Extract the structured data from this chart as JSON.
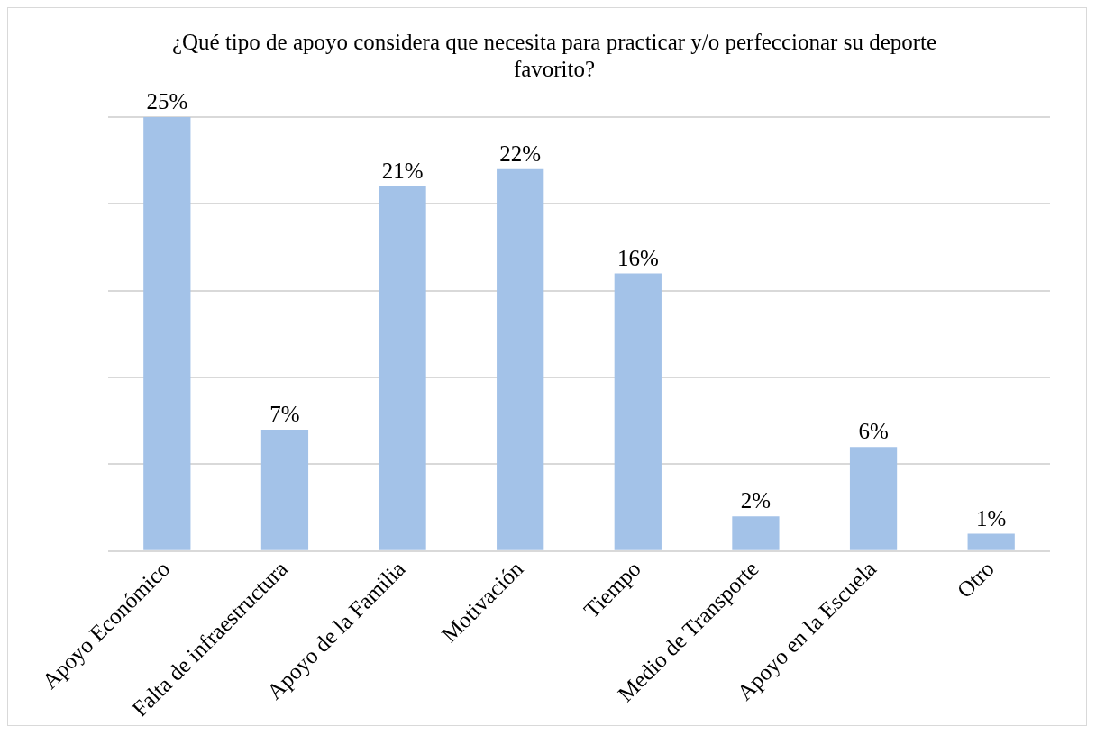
{
  "chart_data": {
    "type": "bar",
    "title": "¿Qué tipo de apoyo considera que necesita para practicar y/o perfeccionar su deporte favorito?",
    "categories": [
      "Apoyo Económico",
      "Falta de infraestructura",
      "Apoyo de la Familia",
      "Motivación",
      "Tiempo",
      "Medio de Transporte",
      "Apoyo en la Escuela",
      "Otro"
    ],
    "values": [
      25,
      7,
      21,
      22,
      16,
      2,
      6,
      1
    ],
    "value_labels": [
      "25%",
      "7%",
      "21%",
      "22%",
      "16%",
      "2%",
      "6%",
      "1%"
    ],
    "color": "#a3c2e8",
    "tick_labels": "x",
    "grid": "y"
  }
}
